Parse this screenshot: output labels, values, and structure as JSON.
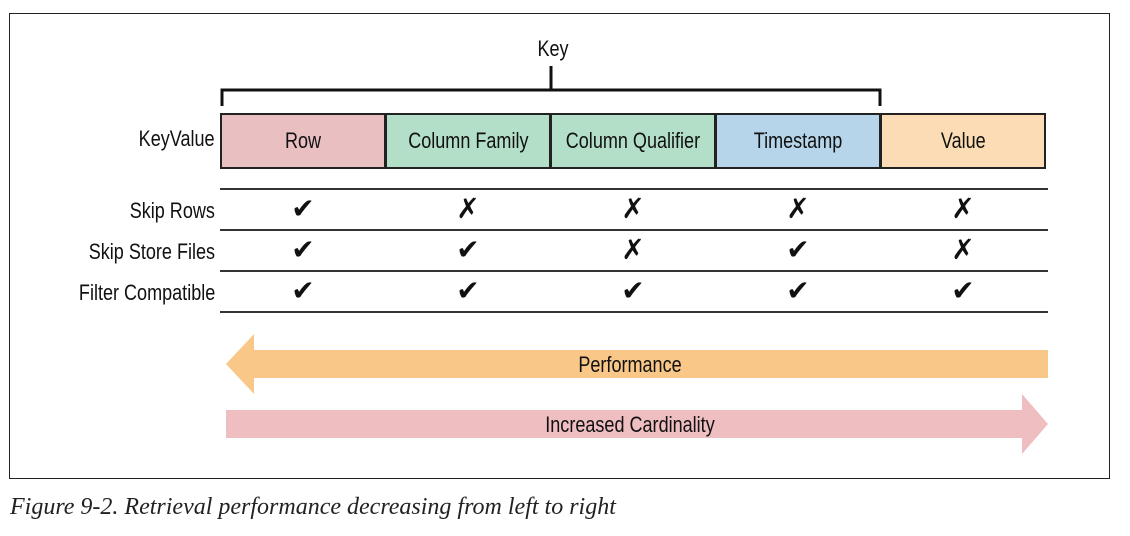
{
  "key_label": "Key",
  "keyvalue_label": "KeyValue",
  "columns": [
    {
      "label": "Row",
      "color": "#eabfc2"
    },
    {
      "label": "Column Family",
      "color": "#b3dfc8"
    },
    {
      "label": "Column Qualifier",
      "color": "#b3dfc8"
    },
    {
      "label": "Timestamp",
      "color": "#b6d5ea"
    },
    {
      "label": "Value",
      "color": "#fcdcb4"
    }
  ],
  "rows": [
    {
      "label": "Skip Rows",
      "marks": [
        "check",
        "cross",
        "cross",
        "cross",
        "cross"
      ]
    },
    {
      "label": "Skip Store Files",
      "marks": [
        "check",
        "check",
        "cross",
        "check",
        "cross"
      ]
    },
    {
      "label": "Filter Compatible",
      "marks": [
        "check",
        "check",
        "check",
        "check",
        "check"
      ]
    }
  ],
  "arrows": {
    "performance": {
      "label": "Performance",
      "direction": "left",
      "color": "#f9c787"
    },
    "cardinality": {
      "label": "Increased Cardinality",
      "direction": "right",
      "color": "#eebec1"
    }
  },
  "caption": "Figure 9-2. Retrieval performance decreasing from left to right"
}
